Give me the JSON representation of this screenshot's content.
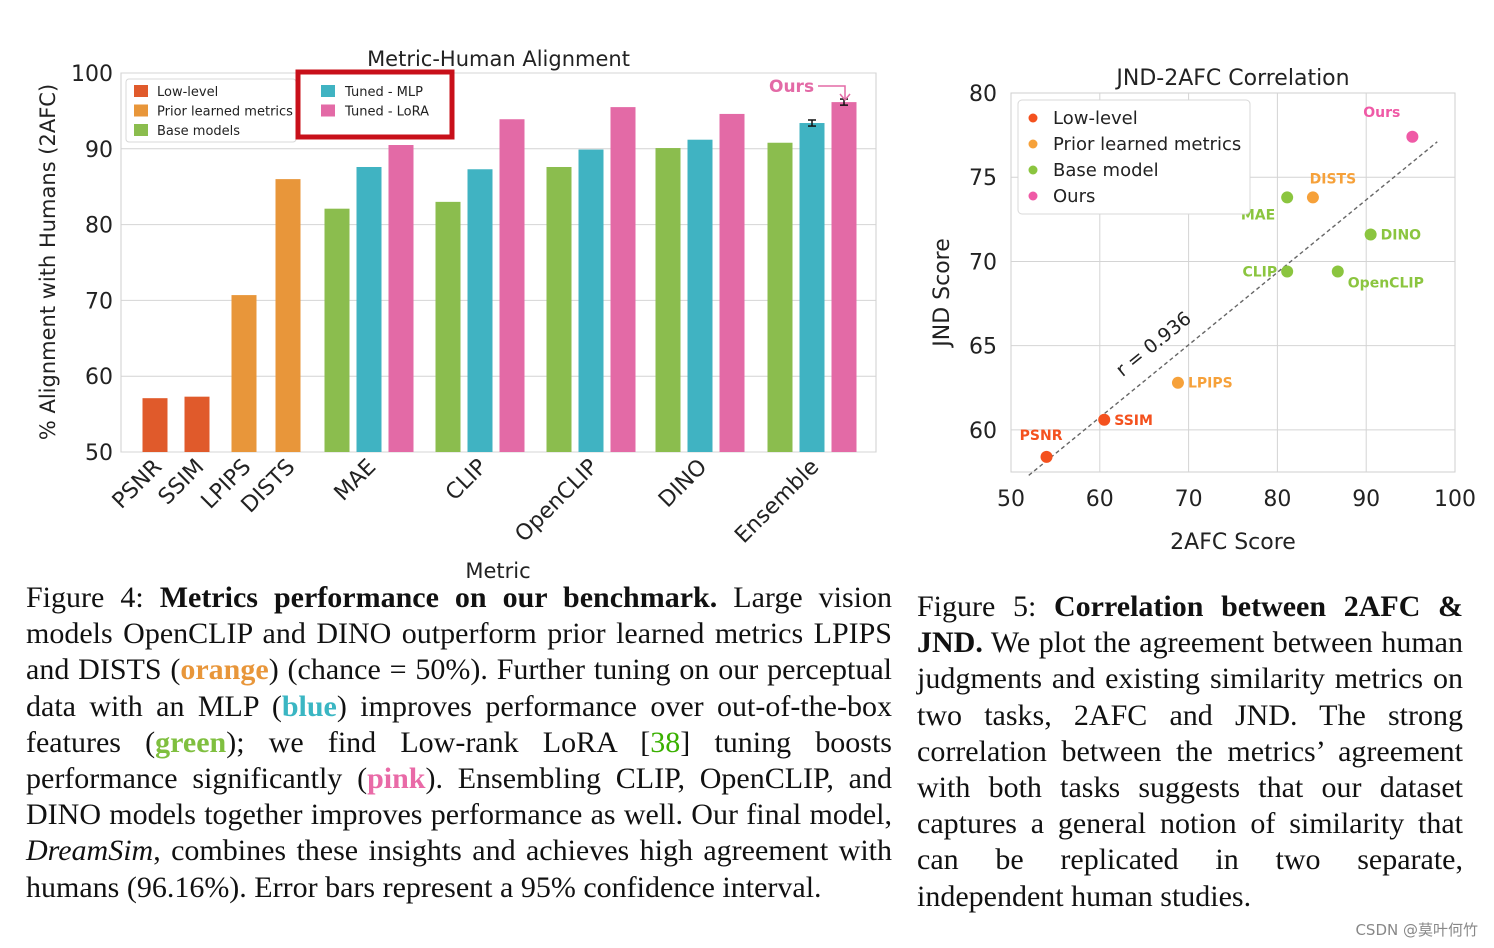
{
  "chart_data": [
    {
      "type": "bar",
      "title": "Metric-Human Alignment",
      "xlabel": "Metric",
      "ylabel": "% Alignment with Humans (2AFC)",
      "ylim": [
        50,
        100
      ],
      "yticks": [
        50,
        60,
        70,
        80,
        90,
        100
      ],
      "grid": true,
      "colors": {
        "Low-level": "#e05a2b",
        "Prior learned metrics": "#e8963a",
        "Base models": "#8bbd4e",
        "Tuned - MLP": "#40b3c2",
        "Tuned - LoRA": "#e36aa6"
      },
      "legend": [
        {
          "label": "Low-level",
          "color": "#e05a2b"
        },
        {
          "label": "Prior learned metrics",
          "color": "#e8963a"
        },
        {
          "label": "Base models",
          "color": "#8bbd4e"
        }
      ],
      "legend_highlighted": [
        {
          "label": "Tuned - MLP",
          "color": "#40b3c2"
        },
        {
          "label": "Tuned - LoRA",
          "color": "#e36aa6"
        }
      ],
      "highlight_box_color": "#c8101a",
      "annotation": {
        "text": "Ours",
        "color": "#e36aa6"
      },
      "groups": [
        {
          "category": "PSNR",
          "bars": [
            {
              "series": "Low-level",
              "value": 57.1
            }
          ]
        },
        {
          "category": "SSIM",
          "bars": [
            {
              "series": "Low-level",
              "value": 57.3
            }
          ]
        },
        {
          "category": "LPIPS",
          "bars": [
            {
              "series": "Prior learned metrics",
              "value": 70.7
            }
          ]
        },
        {
          "category": "DISTS",
          "bars": [
            {
              "series": "Prior learned metrics",
              "value": 86.0
            }
          ]
        },
        {
          "category": "MAE",
          "bars": [
            {
              "series": "Base models",
              "value": 82.1
            },
            {
              "series": "Tuned - MLP",
              "value": 87.6
            },
            {
              "series": "Tuned - LoRA",
              "value": 90.5
            }
          ]
        },
        {
          "category": "CLIP",
          "bars": [
            {
              "series": "Base models",
              "value": 83.0
            },
            {
              "series": "Tuned - MLP",
              "value": 87.3
            },
            {
              "series": "Tuned - LoRA",
              "value": 93.9
            }
          ]
        },
        {
          "category": "OpenCLIP",
          "bars": [
            {
              "series": "Base models",
              "value": 87.6
            },
            {
              "series": "Tuned - MLP",
              "value": 89.9
            },
            {
              "series": "Tuned - LoRA",
              "value": 95.5
            }
          ]
        },
        {
          "category": "DINO",
          "bars": [
            {
              "series": "Base models",
              "value": 90.1
            },
            {
              "series": "Tuned - MLP",
              "value": 91.2
            },
            {
              "series": "Tuned - LoRA",
              "value": 94.6
            }
          ]
        },
        {
          "category": "Ensemble",
          "bars": [
            {
              "series": "Base models",
              "value": 90.8
            },
            {
              "series": "Tuned - MLP",
              "value": 93.4,
              "err": 0.4
            },
            {
              "series": "Tuned - LoRA",
              "value": 96.16,
              "err": 0.4
            }
          ]
        }
      ]
    },
    {
      "type": "scatter",
      "title": "JND-2AFC Correlation",
      "xlabel": "2AFC Score",
      "ylabel": "JND Score",
      "xlim": [
        50,
        100
      ],
      "ylim": [
        57.5,
        80
      ],
      "xticks": [
        50,
        60,
        70,
        80,
        90,
        100
      ],
      "yticks": [
        60,
        65,
        70,
        75,
        80
      ],
      "grid": true,
      "legend": [
        {
          "label": "Low-level",
          "color": "#f4511e"
        },
        {
          "label": "Prior learned metrics",
          "color": "#f6a13a"
        },
        {
          "label": "Base model",
          "color": "#8bc53f"
        },
        {
          "label": "Ours",
          "color": "#ef5aa6"
        }
      ],
      "fit_line": {
        "label": "r = 0.936",
        "x": [
          52,
          98
        ],
        "y": [
          57.3,
          77.1
        ]
      },
      "points": [
        {
          "label": "PSNR",
          "x": 54.0,
          "y": 58.4,
          "group": "Low-level",
          "color": "#f4511e",
          "label_side": "above-left"
        },
        {
          "label": "SSIM",
          "x": 60.5,
          "y": 60.6,
          "group": "Low-level",
          "color": "#f4511e",
          "label_side": "right"
        },
        {
          "label": "LPIPS",
          "x": 68.8,
          "y": 62.8,
          "group": "Prior learned metrics",
          "color": "#f6a13a",
          "label_side": "right"
        },
        {
          "label": "DISTS",
          "x": 84.0,
          "y": 73.8,
          "group": "Prior learned metrics",
          "color": "#f6a13a",
          "label_side": "above"
        },
        {
          "label": "MAE",
          "x": 81.1,
          "y": 73.8,
          "group": "Base model",
          "color": "#8bc53f",
          "label_side": "below-left"
        },
        {
          "label": "CLIP",
          "x": 81.1,
          "y": 69.4,
          "group": "Base model",
          "color": "#8bc53f",
          "label_side": "left"
        },
        {
          "label": "DINO",
          "x": 90.5,
          "y": 71.6,
          "group": "Base model",
          "color": "#8bc53f",
          "label_side": "right"
        },
        {
          "label": "OpenCLIP",
          "x": 86.8,
          "y": 69.4,
          "group": "Base model",
          "color": "#8bc53f",
          "label_side": "below-right"
        },
        {
          "label": "Ours",
          "x": 95.2,
          "y": 77.4,
          "group": "Ours",
          "color": "#ef5aa6",
          "label_side": "above-left"
        }
      ]
    }
  ],
  "captions": {
    "fig4": {
      "label": "Figure 4:",
      "title": "Metrics performance on our benchmark.",
      "t1": "Large vision models OpenCLIP and DINO outperform prior learned metrics LPIPS and DISTS (",
      "orange": "orange",
      "t2": ") (chance = 50%). Further tuning on our perceptual data with an MLP (",
      "blue": "blue",
      "t3": ") improves performance over out-of-the-box features (",
      "green": "green",
      "t4": "); we find Low-rank LoRA [",
      "ref": "38",
      "t5": "] tuning boosts performance significantly (",
      "pink": "pink",
      "t6": "). Ensembling CLIP, OpenCLIP, and DINO models together improves performance as well. Our final model, ",
      "model": "DreamSim",
      "t7": ", combines these insights and achieves high agreement with humans (96.16%). Error bars represent a 95% confidence interval."
    },
    "fig5": {
      "label": "Figure 5:",
      "title": "Correlation between 2AFC & JND.",
      "body": "We plot the agreement between human judgments and existing similarity metrics on two tasks, 2AFC and JND. The strong correlation between the metrics’ agreement with both tasks suggests that our dataset captures a general notion of similarity that can be replicated in two separate, independent human studies."
    }
  },
  "watermark": "CSDN @莫叶何竹"
}
